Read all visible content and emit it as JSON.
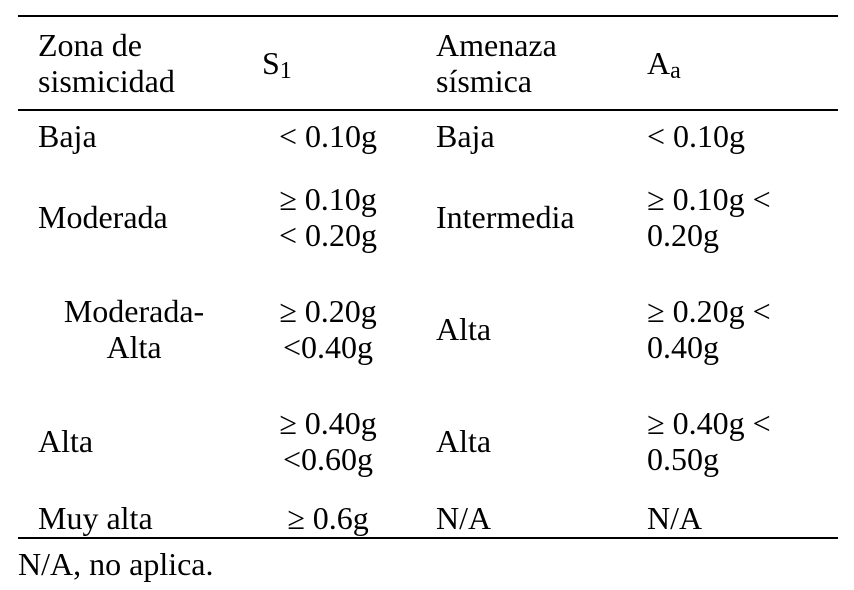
{
  "table": {
    "header": [
      {
        "text": "Zona de\nsismicidad"
      },
      {
        "text": "S",
        "sub": "1"
      },
      {
        "text": "Amenaza\nsísmica"
      },
      {
        "text": "A",
        "sub": "a"
      }
    ],
    "rows": [
      [
        "Baja",
        "< 0.10g",
        "Baja",
        "< 0.10g"
      ],
      [
        "Moderada",
        "≥ 0.10g\n< 0.20g",
        "Intermedia",
        "≥ 0.10g <\n0.20g"
      ],
      [
        "Moderada-\nAlta",
        "≥ 0.20g\n<0.40g",
        "Alta",
        "≥ 0.20g <\n0.40g"
      ],
      [
        "Alta",
        "≥ 0.40g\n<0.60g",
        "Alta",
        "≥ 0.40g <\n0.50g"
      ],
      [
        "Muy alta",
        "≥ 0.6g",
        "N/A",
        "N/A"
      ]
    ],
    "footnote": "N/A, no aplica."
  }
}
